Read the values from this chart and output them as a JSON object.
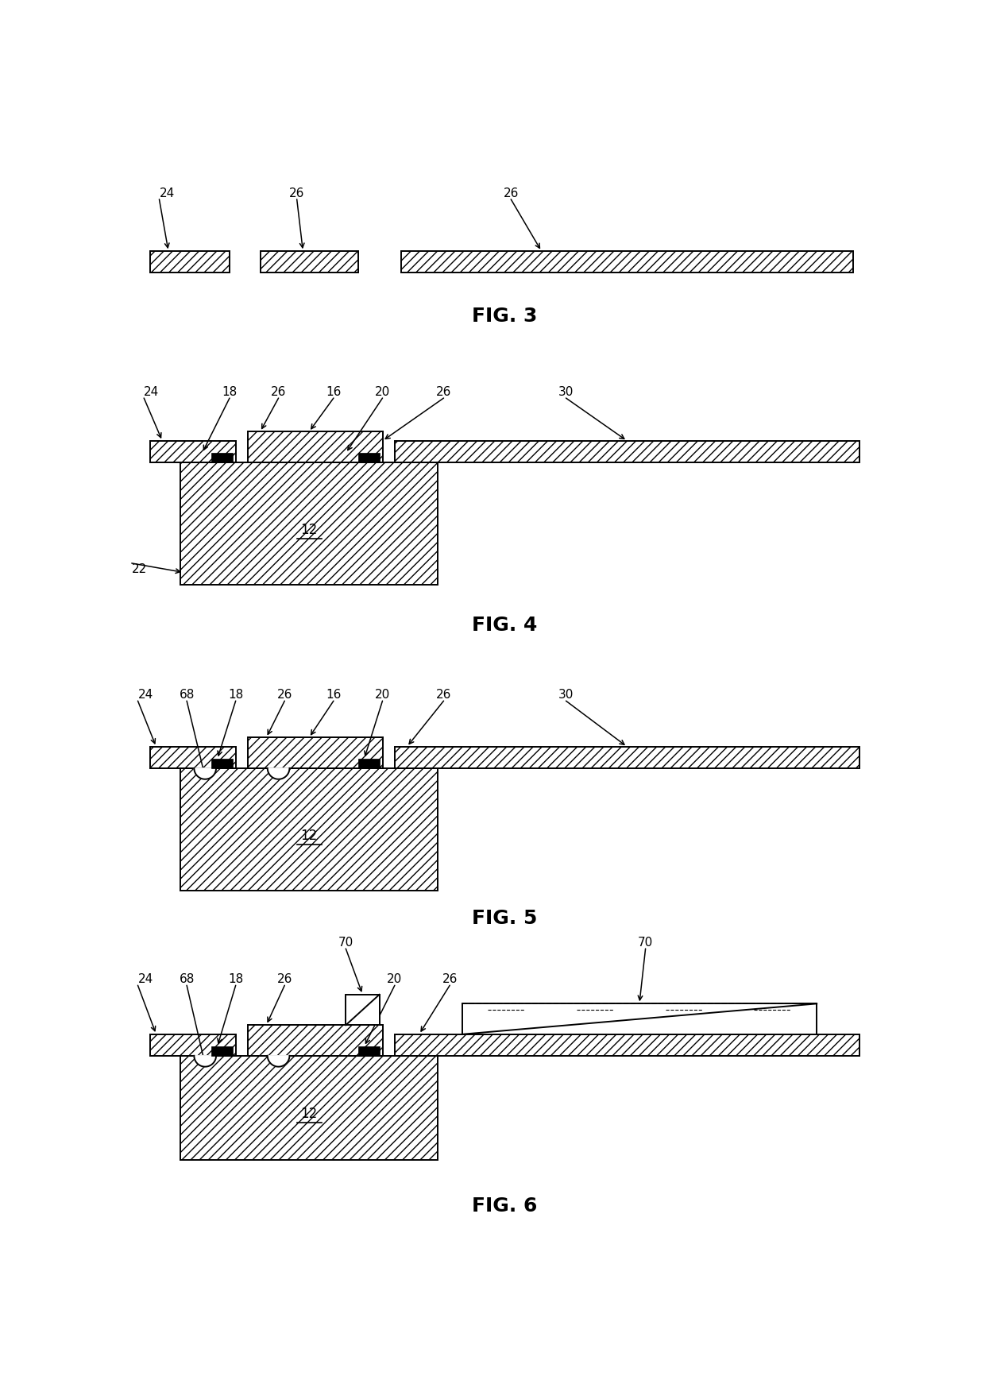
{
  "bg_color": "#ffffff",
  "line_color": "#000000",
  "fig_width": 12.4,
  "fig_height": 17.37,
  "lw": 1.4,
  "hatch_density": "///",
  "fig_labels": [
    "FIG. 3",
    "FIG. 4",
    "FIG. 5",
    "FIG. 6"
  ],
  "fig_label_fontsize": 18,
  "annotation_fontsize": 11,
  "ref_fontsize": 11
}
